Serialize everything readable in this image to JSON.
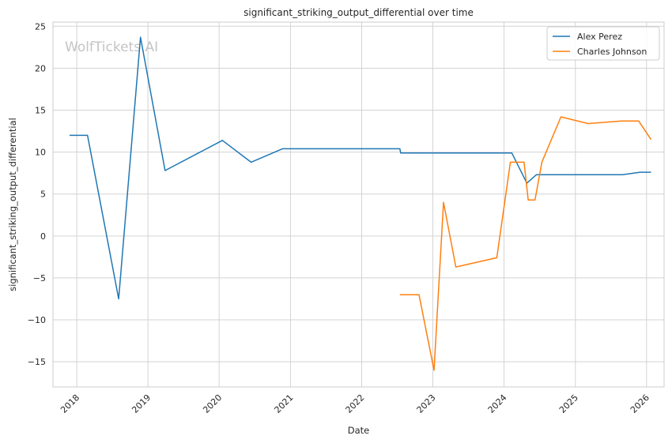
{
  "chart_data": {
    "type": "line",
    "title": "significant_striking_output_differential over time",
    "xlabel": "Date",
    "ylabel": "significant_striking_output_differential",
    "watermark": "WolfTickets.AI",
    "xlim": [
      "2017-09-01",
      "2026-04-01"
    ],
    "ylim": [
      -18,
      25.5
    ],
    "x_ticks": [
      "2018",
      "2019",
      "2020",
      "2021",
      "2022",
      "2023",
      "2024",
      "2025",
      "2026"
    ],
    "y_ticks": [
      25,
      20,
      15,
      10,
      5,
      0,
      -5,
      -10,
      -15
    ],
    "grid": true,
    "legend_position": "top-right",
    "series": [
      {
        "name": "Alex Perez",
        "color": "#1f77b4",
        "points": [
          [
            "2017-11-25",
            12.0
          ],
          [
            "2018-02-25",
            12.0
          ],
          [
            "2018-08-04",
            -7.5
          ],
          [
            "2018-11-24",
            23.7
          ],
          [
            "2019-03-30",
            7.8
          ],
          [
            "2020-01-18",
            11.4
          ],
          [
            "2020-06-13",
            8.8
          ],
          [
            "2020-11-21",
            10.4
          ],
          [
            "2022-07-16",
            10.4
          ],
          [
            "2022-07-20",
            9.9
          ],
          [
            "2024-01-20",
            9.9
          ],
          [
            "2024-02-10",
            9.9
          ],
          [
            "2024-04-27",
            6.3
          ],
          [
            "2024-06-15",
            7.3
          ],
          [
            "2025-08-30",
            7.3
          ],
          [
            "2025-11-29",
            7.6
          ],
          [
            "2026-01-24",
            7.6
          ]
        ]
      },
      {
        "name": "Charles Johnson",
        "color": "#ff7f0e",
        "points": [
          [
            "2022-07-16",
            -7.0
          ],
          [
            "2022-10-22",
            -7.0
          ],
          [
            "2023-01-07",
            -16.0
          ],
          [
            "2023-02-25",
            4.0
          ],
          [
            "2023-04-29",
            -3.7
          ],
          [
            "2023-11-25",
            -2.6
          ],
          [
            "2024-02-03",
            8.8
          ],
          [
            "2024-04-13",
            8.8
          ],
          [
            "2024-05-04",
            4.3
          ],
          [
            "2024-06-08",
            4.3
          ],
          [
            "2024-07-13",
            8.8
          ],
          [
            "2024-10-19",
            14.2
          ],
          [
            "2025-03-08",
            13.4
          ],
          [
            "2025-08-23",
            13.7
          ],
          [
            "2025-11-22",
            13.7
          ],
          [
            "2026-01-24",
            11.5
          ]
        ]
      }
    ]
  }
}
